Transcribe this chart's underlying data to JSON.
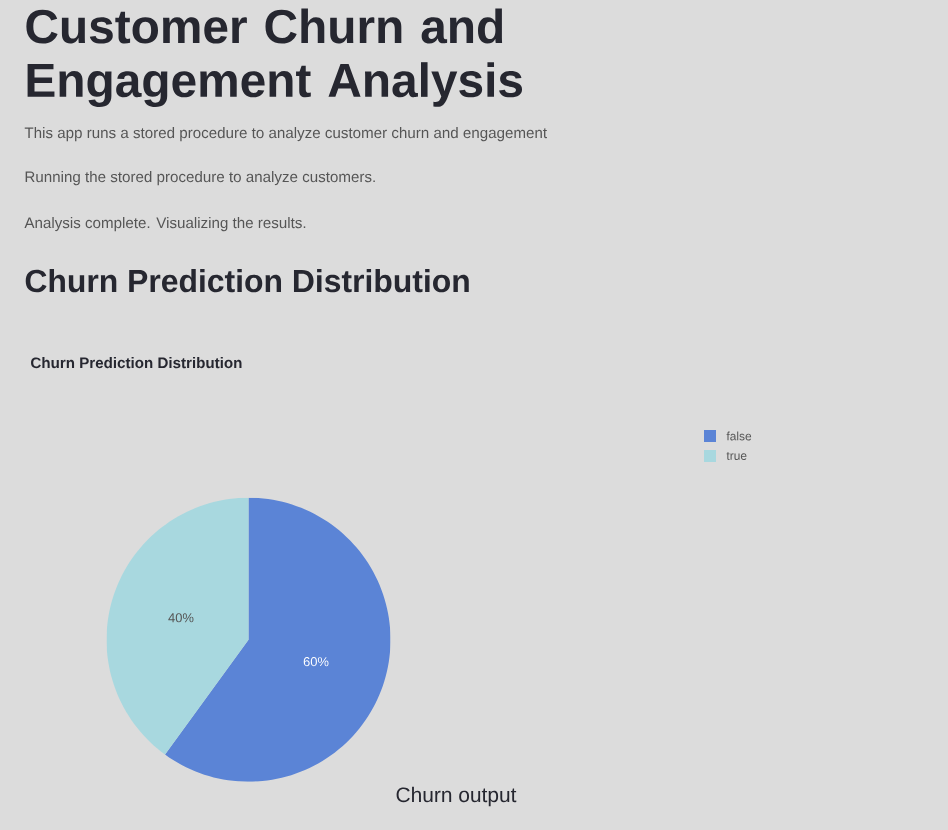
{
  "chart_data": {
    "type": "pie",
    "title": "Churn Prediction Distribution",
    "xlabel": "Churn output",
    "categories": [
      "false",
      "true"
    ],
    "values": [
      60,
      40
    ],
    "colors": [
      "#5b84d6",
      "#a8d8df"
    ],
    "value_labels": [
      "60%",
      "40%"
    ],
    "legend": "top right",
    "annotations": [
      "Customer Churn and Engagement Analysis",
      "This app runs a stored procedure to analyze customer churn and engagement",
      "Running the stored procedure to analyze customers.",
      "Analysis complete. Visualizing the results.",
      "Churn Prediction Distribution"
    ]
  }
}
